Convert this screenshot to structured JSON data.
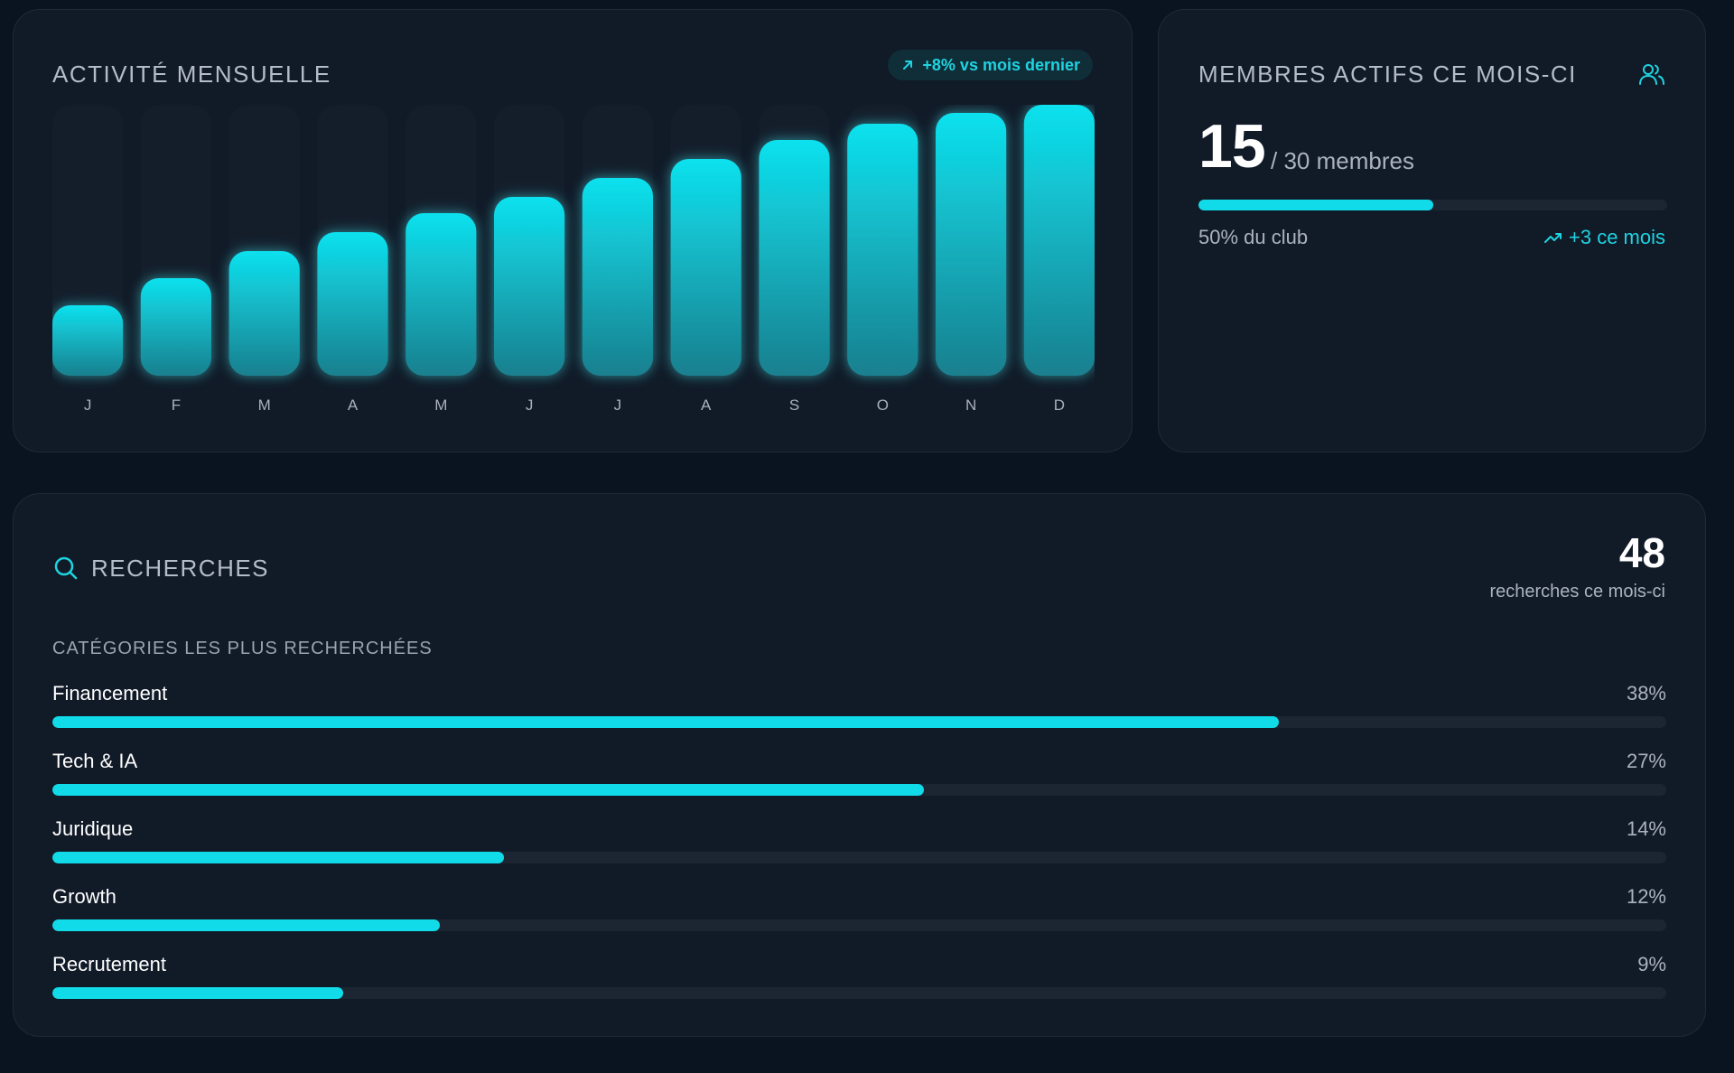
{
  "activity": {
    "title": "ACTIVITÉ MENSUELLE",
    "trend": "+8% vs mois dernier",
    "trend_icon": "arrow-up-right-icon"
  },
  "chart_data": {
    "type": "bar",
    "categories": [
      "J",
      "F",
      "M",
      "A",
      "M",
      "J",
      "J",
      "A",
      "S",
      "O",
      "N",
      "D"
    ],
    "values": [
      26,
      36,
      46,
      53,
      60,
      66,
      73,
      80,
      87,
      93,
      97,
      100
    ],
    "ylim": [
      0,
      100
    ],
    "grid": false,
    "colors": {
      "bar": "#11dbe8",
      "bar_bottom": "#1a7f8e",
      "track": "#141e2b"
    }
  },
  "members": {
    "title": "MEMBRES ACTIFS CE MOIS-CI",
    "icon": "users-icon",
    "count": "15",
    "total_label": "/ 30 membres",
    "progress": 0.5,
    "percent_label": "50% du club",
    "delta_label": "+3 ce mois"
  },
  "searches": {
    "title": "RECHERCHES",
    "icon": "search-icon",
    "total": "48",
    "total_caption": "recherches ce mois-ci",
    "section_label": "CATÉGORIES LES PLUS RECHERCHÉES",
    "categories": [
      {
        "name": "Financement",
        "percent_label": "38%",
        "fill": 0.76
      },
      {
        "name": "Tech & IA",
        "percent_label": "27%",
        "fill": 0.54
      },
      {
        "name": "Juridique",
        "percent_label": "14%",
        "fill": 0.28
      },
      {
        "name": "Growth",
        "percent_label": "12%",
        "fill": 0.24
      },
      {
        "name": "Recrutement",
        "percent_label": "9%",
        "fill": 0.18
      }
    ]
  },
  "colors": {
    "accent": "#11dbe8",
    "background": "#0a1320",
    "card": "#111a27"
  }
}
